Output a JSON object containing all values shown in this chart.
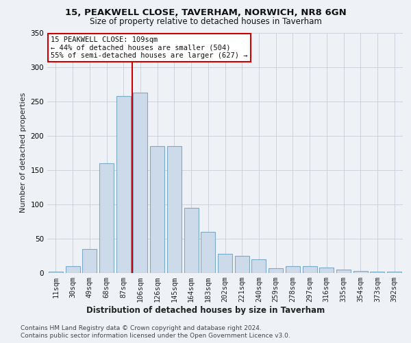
{
  "title1": "15, PEAKWELL CLOSE, TAVERHAM, NORWICH, NR8 6GN",
  "title2": "Size of property relative to detached houses in Taverham",
  "xlabel": "Distribution of detached houses by size in Taverham",
  "ylabel": "Number of detached properties",
  "categories": [
    "11sqm",
    "30sqm",
    "49sqm",
    "68sqm",
    "87sqm",
    "106sqm",
    "126sqm",
    "145sqm",
    "164sqm",
    "183sqm",
    "202sqm",
    "221sqm",
    "240sqm",
    "259sqm",
    "278sqm",
    "297sqm",
    "316sqm",
    "335sqm",
    "354sqm",
    "373sqm",
    "392sqm"
  ],
  "values": [
    2,
    10,
    35,
    160,
    258,
    263,
    185,
    185,
    95,
    60,
    28,
    25,
    20,
    7,
    10,
    10,
    8,
    5,
    3,
    2,
    2
  ],
  "bar_color": "#ccdaea",
  "bar_edge_color": "#7aaac8",
  "highlight_index": 5,
  "highlight_line_color": "#cc0000",
  "ylim": [
    0,
    350
  ],
  "yticks": [
    0,
    50,
    100,
    150,
    200,
    250,
    300,
    350
  ],
  "annotation_text": "15 PEAKWELL CLOSE: 109sqm\n← 44% of detached houses are smaller (504)\n55% of semi-detached houses are larger (627) →",
  "annotation_box_color": "#ffffff",
  "annotation_box_edge": "#cc0000",
  "footer1": "Contains HM Land Registry data © Crown copyright and database right 2024.",
  "footer2": "Contains public sector information licensed under the Open Government Licence v3.0.",
  "background_color": "#eef2f7",
  "plot_background": "#eef2f7",
  "title1_fontsize": 9.5,
  "title2_fontsize": 8.5,
  "ylabel_fontsize": 8,
  "xlabel_fontsize": 8.5,
  "tick_fontsize": 7.5,
  "footer_fontsize": 6.5
}
